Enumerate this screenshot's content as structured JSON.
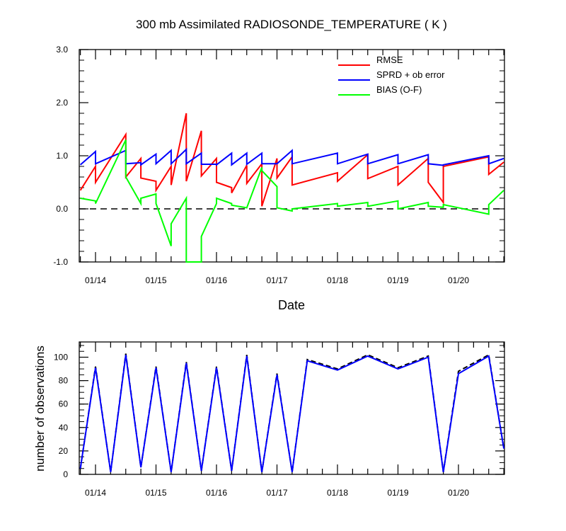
{
  "chart_data": [
    {
      "type": "line",
      "title": "300 mb Assimilated RADIOSONDE_TEMPERATURE ( K )",
      "xlabel": "Date",
      "ylabel": "",
      "ylim": [
        -1.0,
        3.0
      ],
      "yticks": [
        "3.0",
        "2.0",
        "1.0",
        "0.0",
        "-1.0"
      ],
      "xticks": [
        "01/14",
        "01/15",
        "01/16",
        "01/17",
        "01/18",
        "01/19",
        "01/20"
      ],
      "legend_position": "top-right",
      "zero_line": "dashed",
      "series": [
        {
          "name": "RMSE",
          "color": "#ff0000",
          "x": [
            "01/13 18:00",
            "01/14 00:00",
            "01/14 00:00",
            "01/14 12:00",
            "01/14 12:00",
            "01/14 18:00",
            "01/14 18:00",
            "01/15 00:00",
            "01/15 00:00",
            "01/15 06:00",
            "01/15 06:00",
            "01/15 12:00",
            "01/15 12:00",
            "01/15 18:00",
            "01/15 18:00",
            "01/16 00:00",
            "01/16 00:00",
            "01/16 06:00",
            "01/16 06:00",
            "01/16 12:00",
            "01/16 12:00",
            "01/16 18:00",
            "01/16 18:00",
            "01/17 00:00",
            "01/17 00:00",
            "01/17 06:00",
            "01/17 06:00",
            "01/18 00:00",
            "01/18 00:00",
            "01/18 12:00",
            "01/18 12:00",
            "01/19 00:00",
            "01/19 00:00",
            "01/19 12:00",
            "01/19 12:00",
            "01/19 18:00",
            "01/19 18:00",
            "01/20 12:00",
            "01/20 12:00",
            "01/20 18:00"
          ],
          "y": [
            0.35,
            0.8,
            0.5,
            1.4,
            0.6,
            0.95,
            0.58,
            0.52,
            0.35,
            0.8,
            0.45,
            1.8,
            0.52,
            1.47,
            0.62,
            0.95,
            0.5,
            0.4,
            0.3,
            0.82,
            0.48,
            0.85,
            0.05,
            0.95,
            0.58,
            0.98,
            0.45,
            0.68,
            0.52,
            1.02,
            0.57,
            0.8,
            0.45,
            0.95,
            0.5,
            0.12,
            0.8,
            0.98,
            0.65,
            0.88
          ]
        },
        {
          "name": "SPRD + ob error",
          "color": "#0000ff",
          "x": [
            "01/13 18:00",
            "01/14 00:00",
            "01/14 00:00",
            "01/14 12:00",
            "01/14 12:00",
            "01/14 18:00",
            "01/14 18:00",
            "01/15 00:00",
            "01/15 00:00",
            "01/15 06:00",
            "01/15 06:00",
            "01/15 12:00",
            "01/15 12:00",
            "01/15 18:00",
            "01/15 18:00",
            "01/16 00:00",
            "01/16 00:00",
            "01/16 06:00",
            "01/16 06:00",
            "01/16 12:00",
            "01/16 12:00",
            "01/16 18:00",
            "01/16 18:00",
            "01/17 00:00",
            "01/17 00:00",
            "01/17 06:00",
            "01/17 06:00",
            "01/18 00:00",
            "01/18 00:00",
            "01/18 12:00",
            "01/18 12:00",
            "01/19 00:00",
            "01/19 00:00",
            "01/19 12:00",
            "01/19 12:00",
            "01/19 18:00",
            "01/19 18:00",
            "01/20 12:00",
            "01/20 12:00",
            "01/20 18:00"
          ],
          "y": [
            0.83,
            1.08,
            0.85,
            1.1,
            0.85,
            0.87,
            0.83,
            1.03,
            0.85,
            1.1,
            0.85,
            1.12,
            0.85,
            1.05,
            0.84,
            0.84,
            0.83,
            1.05,
            0.83,
            1.05,
            0.84,
            1.05,
            0.85,
            0.85,
            0.85,
            1.1,
            0.85,
            1.05,
            0.85,
            1.03,
            0.85,
            1.02,
            0.85,
            1.02,
            0.85,
            0.82,
            0.83,
            1.0,
            0.85,
            0.95
          ]
        },
        {
          "name": "BIAS (O-F)",
          "color": "#00ff00",
          "x": [
            "01/13 18:00",
            "01/14 00:00",
            "01/14 00:00",
            "01/14 12:00",
            "01/14 12:00",
            "01/14 18:00",
            "01/14 18:00",
            "01/15 00:00",
            "01/15 00:00",
            "01/15 06:00",
            "01/15 06:00",
            "01/15 12:00",
            "01/15 12:00",
            "01/15 18:00",
            "01/15 18:00",
            "01/16 00:00",
            "01/16 00:00",
            "01/16 06:00",
            "01/16 06:00",
            "01/16 12:00",
            "01/16 12:00",
            "01/16 18:00",
            "01/16 18:00",
            "01/17 00:00",
            "01/17 00:00",
            "01/17 06:00",
            "01/17 06:00",
            "01/18 00:00",
            "01/18 00:00",
            "01/18 12:00",
            "01/18 12:00",
            "01/19 00:00",
            "01/19 00:00",
            "01/19 12:00",
            "01/19 12:00",
            "01/19 18:00",
            "01/19 18:00",
            "01/20 12:00",
            "01/20 12:00",
            "01/20 18:00"
          ],
          "y": [
            0.2,
            0.15,
            0.1,
            1.3,
            0.6,
            0.1,
            0.2,
            0.28,
            0.1,
            -0.7,
            -0.28,
            0.2,
            -1.0,
            -1.0,
            -0.52,
            0.1,
            0.2,
            0.1,
            0.07,
            0.02,
            0.02,
            0.78,
            0.72,
            0.42,
            0.02,
            -0.04,
            0.0,
            0.1,
            0.05,
            0.12,
            0.05,
            0.15,
            0.0,
            0.12,
            0.05,
            0.03,
            0.08,
            -0.1,
            0.08,
            0.35
          ]
        }
      ]
    },
    {
      "type": "line",
      "title": "",
      "xlabel": "",
      "ylabel": "number of observations",
      "ylim": [
        0,
        113
      ],
      "yticks": [
        "0",
        "20",
        "40",
        "60",
        "80",
        "100"
      ],
      "xticks": [
        "01/14",
        "01/15",
        "01/16",
        "01/17",
        "01/18",
        "01/19",
        "01/20"
      ],
      "series": [
        {
          "color": "#000000",
          "style": "dashed",
          "x": [
            "01/13 18:00",
            "01/14 00:00",
            "01/14 06:00",
            "01/14 12:00",
            "01/14 18:00",
            "01/15 00:00",
            "01/15 06:00",
            "01/15 12:00",
            "01/15 18:00",
            "01/16 00:00",
            "01/16 06:00",
            "01/16 12:00",
            "01/16 18:00",
            "01/17 00:00",
            "01/17 06:00",
            "01/17 12:00",
            "01/18 00:00",
            "01/18 12:00",
            "01/19 00:00",
            "01/19 12:00",
            "01/19 18:00",
            "01/20 00:00",
            "01/20 12:00",
            "01/20 18:00"
          ],
          "y": [
            5,
            92,
            2,
            103,
            6,
            92,
            2,
            96,
            3,
            92,
            3,
            102,
            2,
            86,
            2,
            98,
            90,
            102,
            91,
            101,
            2,
            88,
            102,
            22
          ]
        },
        {
          "color": "#0000ff",
          "style": "solid",
          "x": [
            "01/13 18:00",
            "01/14 00:00",
            "01/14 06:00",
            "01/14 12:00",
            "01/14 18:00",
            "01/15 00:00",
            "01/15 06:00",
            "01/15 12:00",
            "01/15 18:00",
            "01/16 00:00",
            "01/16 06:00",
            "01/16 12:00",
            "01/16 18:00",
            "01/17 00:00",
            "01/17 06:00",
            "01/17 12:00",
            "01/18 00:00",
            "01/18 12:00",
            "01/19 00:00",
            "01/19 12:00",
            "01/19 18:00",
            "01/20 00:00",
            "01/20 12:00",
            "01/20 18:00"
          ],
          "y": [
            5,
            91,
            2,
            102,
            6,
            91,
            2,
            95,
            3,
            91,
            3,
            101,
            2,
            85,
            2,
            97,
            89,
            101,
            90,
            100,
            2,
            86,
            101,
            22
          ]
        }
      ]
    }
  ]
}
